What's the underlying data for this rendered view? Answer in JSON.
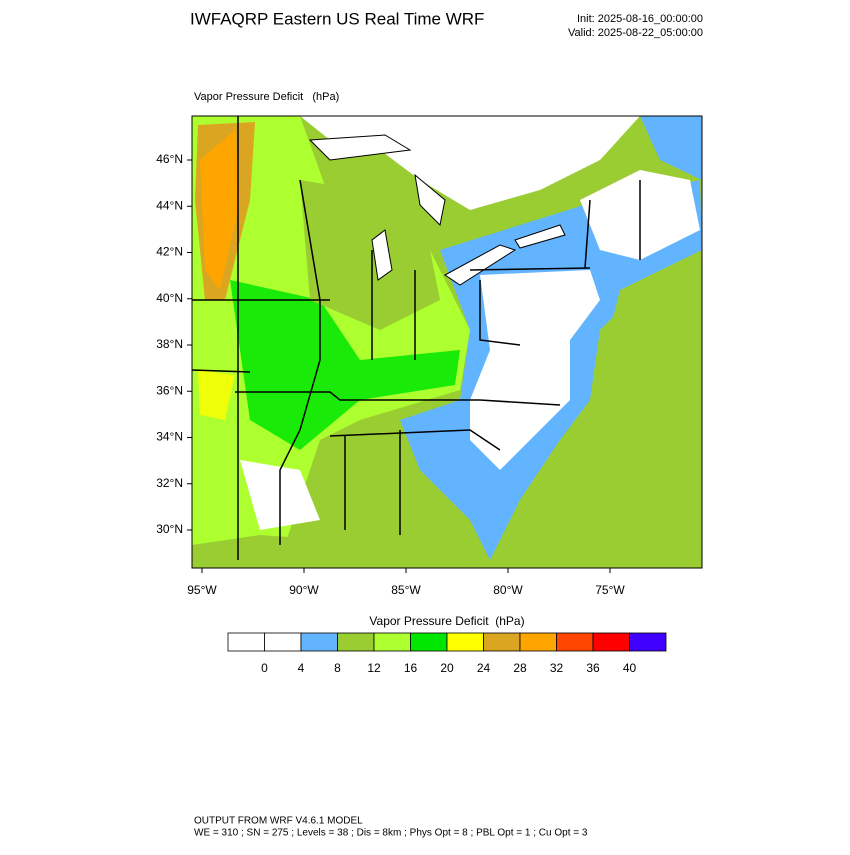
{
  "header": {
    "title": "IWFAQRP Eastern US Real Time WRF",
    "init": "Init: 2025-08-16_00:00:00",
    "valid": "Valid: 2025-08-22_05:00:00"
  },
  "map": {
    "label": "Vapor Pressure Deficit   (hPa)",
    "lat_labels": [
      "46°N",
      "44°N",
      "42°N",
      "40°N",
      "38°N",
      "36°N",
      "34°N",
      "32°N",
      "30°N"
    ],
    "lon_labels": [
      "95°W",
      "90°W",
      "85°W",
      "80°W",
      "75°W"
    ]
  },
  "colorbar": {
    "title": "Vapor Pressure Deficit  (hPa)",
    "colors": [
      "#ffffff",
      "#ffffff",
      "#63b4ff",
      "#9acd32",
      "#adff2f",
      "#00e600",
      "#ffff00",
      "#daa520",
      "#ffa500",
      "#ff4500",
      "#ff0000",
      "#4000ff"
    ],
    "labels": [
      0,
      4,
      8,
      12,
      16,
      20,
      24,
      28,
      32,
      36,
      40
    ]
  },
  "footer": {
    "line1": "OUTPUT FROM WRF V4.6.1 MODEL",
    "line2": "WE = 310 ; SN = 275 ; Levels = 38 ; Dis = 8km ; Phys Opt = 8 ; PBL Opt = 1 ; Cu Opt = 3"
  }
}
